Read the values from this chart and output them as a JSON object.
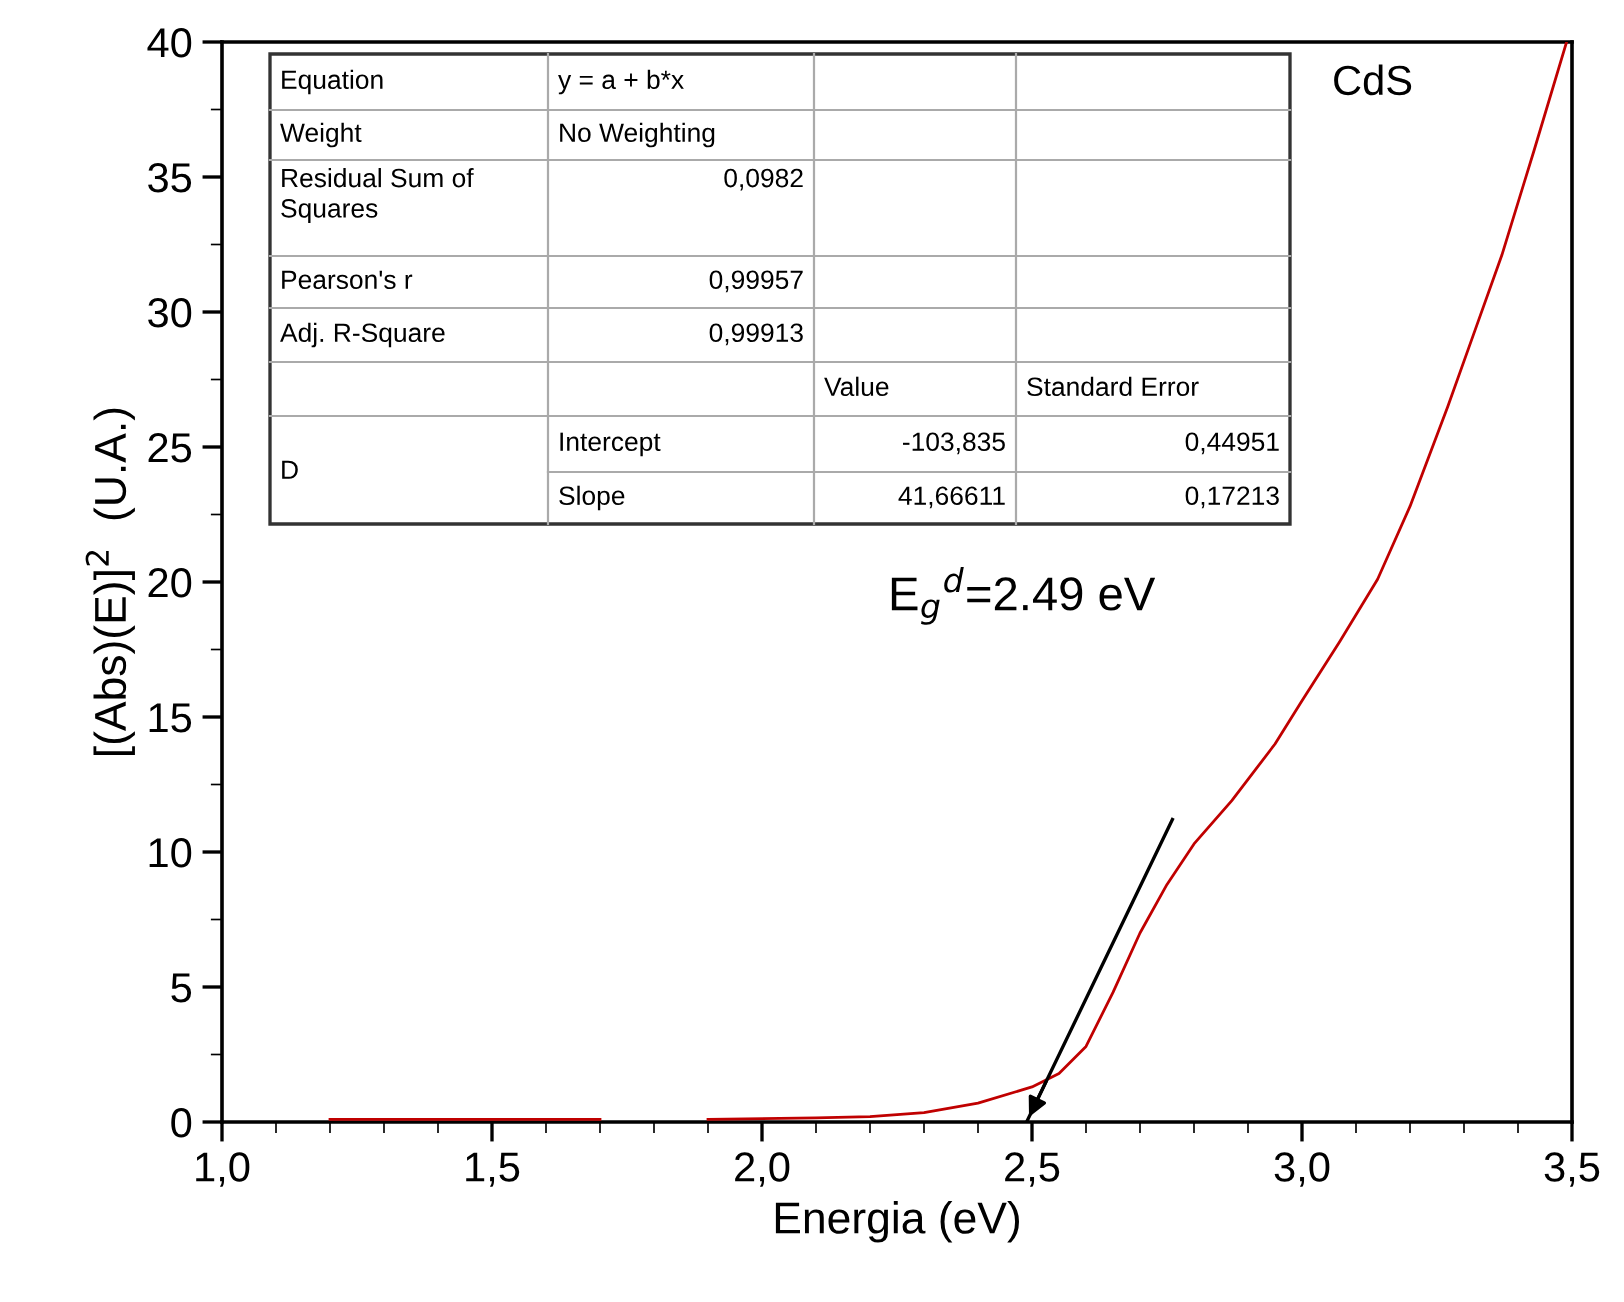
{
  "chart_data": {
    "type": "line",
    "xlabel": "Energia (eV)",
    "ylabel": "[(Abs)(E)]$^{2}$  (U.A.)",
    "xlim": [
      1.0,
      3.5
    ],
    "xticks": [
      {
        "value": 1.0,
        "label": "1,0"
      },
      {
        "value": 1.5,
        "label": "1,5"
      },
      {
        "value": 2.0,
        "label": "2,0"
      },
      {
        "value": 2.5,
        "label": "2,5"
      },
      {
        "value": 3.0,
        "label": "3,0"
      },
      {
        "value": 3.5,
        "label": "3,5"
      }
    ],
    "ylim": [
      0,
      40
    ],
    "yticks": [
      0,
      5,
      10,
      15,
      20,
      25,
      30,
      35,
      40
    ],
    "legend": false,
    "series": [
      {
        "color": "#c00000",
        "x": [
          1.2,
          1.7,
          1.8,
          1.9,
          2.1,
          2.2,
          2.3,
          2.4,
          2.5,
          2.55,
          2.6,
          2.65,
          2.7,
          2.75,
          2.8,
          2.87,
          2.95,
          3.0,
          3.07,
          3.14,
          3.2,
          3.27,
          3.32,
          3.37,
          3.43,
          3.49
        ],
        "values": [
          0.1,
          0.1,
          null,
          0.1,
          0.15,
          0.2,
          0.35,
          0.7,
          1.3,
          1.8,
          2.8,
          4.8,
          7.0,
          8.8,
          10.3,
          11.9,
          14.0,
          15.6,
          17.8,
          20.1,
          22.8,
          26.5,
          29.3,
          32.1,
          36.0,
          40.0
        ]
      },
      {
        "type": "line",
        "color": "#000000",
        "x": [
          2.76,
          2.49
        ],
        "values": [
          11.2,
          0
        ]
      }
    ],
    "annotations": [
      "Equation",
      "y = a + b*x",
      "Weight",
      "No Weighting",
      "Residual Sum of\nSquares",
      "0,0982",
      "Pearson's r",
      "0,99957",
      "Adj. R-Square",
      "0,99913",
      "Value",
      "Standard Error",
      "D",
      "Intercept",
      "-103,835",
      "0,44951",
      "Slope",
      "41,66611",
      "0,17213",
      "CdS",
      "E$_{g}$$^{d}$=2.49 eV"
    ]
  }
}
